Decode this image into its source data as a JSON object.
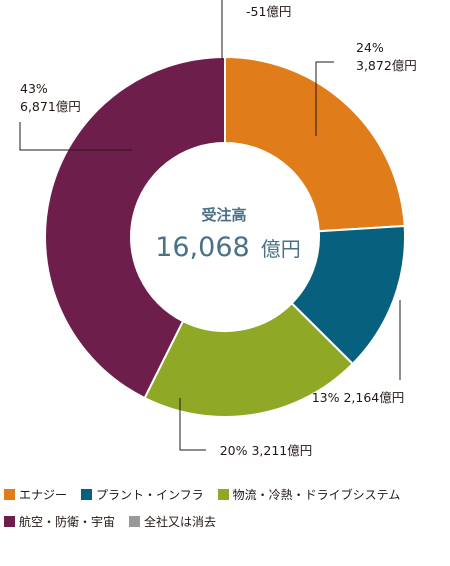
{
  "chart_data": {
    "type": "donut",
    "center": {
      "title": "受注高",
      "value": "16,068",
      "unit": "億円"
    },
    "segments": [
      {
        "name": "エナジー",
        "percent_label": "24%",
        "value_label": "3,872億円",
        "value": 3872,
        "color": "#e07c1a"
      },
      {
        "name": "プラント・インフラ",
        "percent_label": "13%",
        "value_label": "2,164億円",
        "value": 2164,
        "color": "#07607e"
      },
      {
        "name": "物流・冷熱・ドライブシステム",
        "percent_label": "20%",
        "value_label": "3,211億円",
        "value": 3211,
        "color": "#8fa926"
      },
      {
        "name": "航空・防衛・宇宙",
        "percent_label": "43%",
        "value_label": "6,871億円",
        "value": 6871,
        "color": "#6e1e4b"
      },
      {
        "name": "全社又は消去",
        "percent_label": "",
        "value_label": "-51億円",
        "value": -51,
        "color": "#999999"
      }
    ],
    "legend": [
      {
        "label": "エナジー",
        "color": "#e07c1a"
      },
      {
        "label": "プラント・インフラ",
        "color": "#07607e"
      },
      {
        "label": "物流・冷熱・ドライブシステム",
        "color": "#8fa926"
      },
      {
        "label": "航空・防衛・宇宙",
        "color": "#6e1e4b"
      },
      {
        "label": "全社又は消去",
        "color": "#999999"
      }
    ]
  }
}
